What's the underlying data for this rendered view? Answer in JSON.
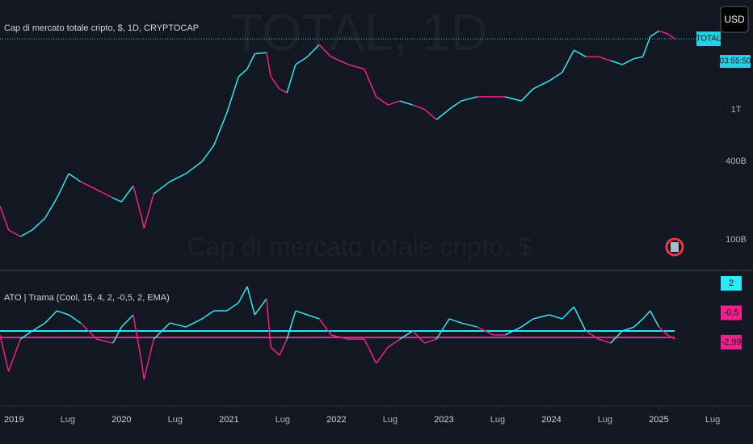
{
  "chart_data": [
    {
      "type": "line",
      "title": "Cap di mercato totale cripto, $, 1D, CRYPTOCAP",
      "watermark": "TOTAL, 1D",
      "watermark_subtitle": "Cap di mercato totale cripto, $",
      "currency": "USD",
      "countdown": "03:55:50",
      "log_scale": true,
      "x": [
        2018.87,
        2018.95,
        2019.06,
        2019.17,
        2019.29,
        2019.4,
        2019.51,
        2019.62,
        2019.77,
        2019.92,
        2020.0,
        2020.11,
        2020.19,
        2020.21,
        2020.3,
        2020.45,
        2020.6,
        2020.75,
        2020.86,
        2020.98,
        2021.09,
        2021.17,
        2021.24,
        2021.35,
        2021.39,
        2021.47,
        2021.54,
        2021.62,
        2021.73,
        2021.84,
        2021.95,
        2022.11,
        2022.26,
        2022.37,
        2022.48,
        2022.59,
        2022.71,
        2022.82,
        2022.93,
        2023.05,
        2023.16,
        2023.31,
        2023.46,
        2023.57,
        2023.72,
        2023.83,
        2023.98,
        2024.1,
        2024.21,
        2024.32,
        2024.44,
        2024.55,
        2024.66,
        2024.77,
        2024.85,
        2024.92,
        2025.0,
        2025.08,
        2025.15
      ],
      "series": [
        {
          "name": "TOTAL",
          "color": "#22d3e6",
          "values": [
            182000000000,
            119000000000,
            106000000000,
            119000000000,
            147000000000,
            210000000000,
            323000000000,
            280000000000,
            243000000000,
            210000000000,
            196000000000,
            260000000000,
            147000000000,
            122000000000,
            226000000000,
            280000000000,
            323000000000,
            400000000000,
            533000000000,
            944000000000,
            1800000000000,
            2060000000000,
            2700000000000,
            2760000000000,
            1800000000000,
            1450000000000,
            1350000000000,
            2230000000000,
            2560000000000,
            3170000000000,
            2560000000000,
            2230000000000,
            2060000000000,
            1260000000000,
            1090000000000,
            1170000000000,
            1090000000000,
            1010000000000,
            840000000000,
            1010000000000,
            1170000000000,
            1260000000000,
            1260000000000,
            1260000000000,
            1170000000000,
            1450000000000,
            1670000000000,
            1940000000000,
            2880000000000,
            2560000000000,
            2560000000000,
            2390000000000,
            2230000000000,
            2480000000000,
            2560000000000,
            3660000000000,
            4050000000000,
            3850000000000,
            3520000000000
          ]
        }
      ],
      "ylim": [
        59800000000,
        7000000000000
      ],
      "yticks": [
        {
          "value": 100000000000,
          "label": "100B"
        },
        {
          "value": 400000000000,
          "label": "400B"
        },
        {
          "value": 1000000000000,
          "label": "1T"
        }
      ],
      "xlim": [
        2018.87,
        2025.56
      ],
      "xticks": [
        {
          "value": 2019,
          "label": "2019"
        },
        {
          "value": 2019.5,
          "label": "Lug"
        },
        {
          "value": 2020,
          "label": "2020"
        },
        {
          "value": 2020.5,
          "label": "Lug"
        },
        {
          "value": 2021,
          "label": "2021"
        },
        {
          "value": 2021.5,
          "label": "Lug"
        },
        {
          "value": 2022,
          "label": "2022"
        },
        {
          "value": 2022.5,
          "label": "Lug"
        },
        {
          "value": 2023,
          "label": "2023"
        },
        {
          "value": 2023.5,
          "label": "Lug"
        },
        {
          "value": 2024,
          "label": "2024"
        },
        {
          "value": 2024.5,
          "label": "Lug"
        },
        {
          "value": 2025,
          "label": "2025"
        },
        {
          "value": 2025.5,
          "label": "Lug"
        }
      ]
    },
    {
      "type": "line",
      "x": [
        2018.87,
        2018.95,
        2019.06,
        2019.17,
        2019.29,
        2019.4,
        2019.51,
        2019.62,
        2019.77,
        2019.92,
        2020.0,
        2020.11,
        2020.19,
        2020.21,
        2020.3,
        2020.45,
        2020.6,
        2020.75,
        2020.86,
        2020.98,
        2021.09,
        2021.17,
        2021.24,
        2021.35,
        2021.39,
        2021.47,
        2021.54,
        2021.62,
        2021.73,
        2021.84,
        2021.95,
        2022.11,
        2022.26,
        2022.37,
        2022.48,
        2022.59,
        2022.71,
        2022.82,
        2022.93,
        2023.05,
        2023.16,
        2023.31,
        2023.46,
        2023.57,
        2023.72,
        2023.83,
        2023.98,
        2024.1,
        2024.21,
        2024.32,
        2024.44,
        2024.55,
        2024.66,
        2024.77,
        2024.85,
        2024.92,
        2025.0,
        2025.08,
        2025.15
      ],
      "series": [
        {
          "name": "ATO | Trama (Cool, 15, 4, 2, -0,5, 2, EMA)",
          "up_color": "#2ee8f5",
          "down_color": "#f0228a",
          "values": [
            -2.38,
            -5.47,
            -2.73,
            -2.04,
            -1.36,
            -0.33,
            -0.67,
            -1.36,
            -2.73,
            -3.07,
            -1.7,
            -0.67,
            -4.78,
            -6.15,
            -2.73,
            -1.36,
            -1.7,
            -1.01,
            -0.33,
            -0.33,
            0.36,
            1.73,
            -0.67,
            0.7,
            -3.41,
            -4.1,
            -2.73,
            -0.33,
            -0.67,
            -1.01,
            -2.38,
            -2.73,
            -2.73,
            -4.78,
            -3.41,
            -2.73,
            -2.04,
            -3.07,
            -2.73,
            -1.01,
            -1.36,
            -1.7,
            -2.38,
            -2.38,
            -1.7,
            -1.01,
            -0.67,
            -1.01,
            0.01,
            -2.04,
            -2.73,
            -3.07,
            -2.04,
            -1.7,
            -1.01,
            -0.33,
            -1.7,
            -2.38,
            -2.73
          ]
        }
      ],
      "levels": [
        -2.04,
        -2.59
      ],
      "level_colors": [
        "#2ee8f5",
        "#f0228a"
      ],
      "price_labels": [
        {
          "value": 2,
          "label": "2",
          "color": "#2ee8f5"
        },
        {
          "value": -0.5,
          "label": "-0,5",
          "color": "#f0228a"
        },
        {
          "value": -2.99,
          "label": "-2,99",
          "color": "#f0228a"
        }
      ],
      "ylim": [
        -8.2,
        2.89
      ],
      "xlim": [
        2018.87,
        2025.56
      ]
    }
  ]
}
